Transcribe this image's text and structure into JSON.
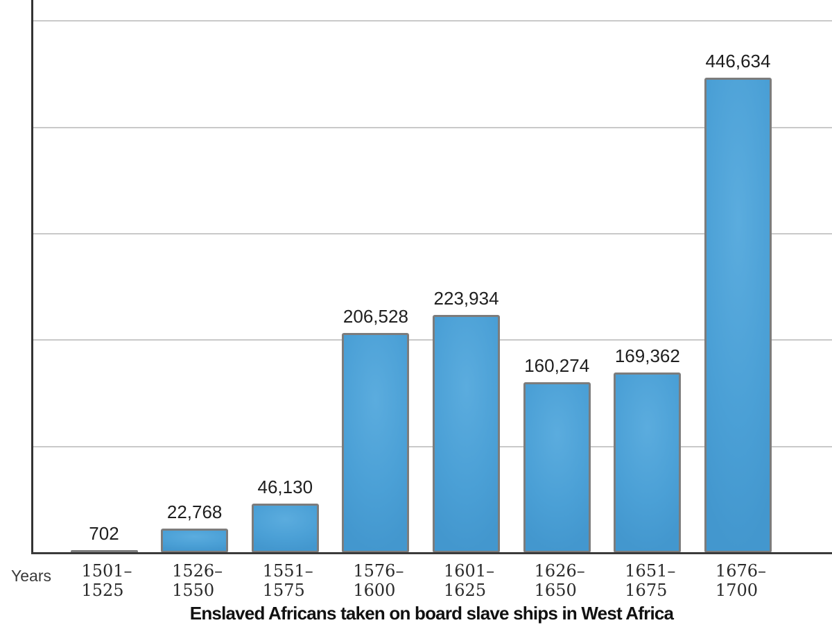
{
  "chart_data": {
    "type": "bar",
    "title": "Enslaved Africans taken on board slave ships in West Africa",
    "xlabel": "Years",
    "categories": [
      "1501–\n1525",
      "1526–\n1550",
      "1551–\n1575",
      "1576–\n1600",
      "1601–\n1625",
      "1626–\n1650",
      "1651–\n1675",
      "1676–\n1700"
    ],
    "values": [
      702,
      22768,
      46130,
      206528,
      223934,
      160274,
      169362,
      446634
    ],
    "value_labels": [
      "702",
      "22,768",
      "46,130",
      "206,528",
      "223,934",
      "160,274",
      "169,362",
      "446,634"
    ],
    "ylim": [
      0,
      500000
    ],
    "gridline_step": 100000,
    "grid": "horizontal-only",
    "y_tick_labels_shown": false,
    "legend": "none",
    "colors": {
      "bar_fill": "#4BA0D6",
      "bar_border": "#7C7C7C",
      "axis": "#3A3A3A",
      "gridline": "#C9C9C9",
      "value_label_text": "#1E1E1E",
      "tick_label_text": "#2B2B2B",
      "title_text": "#111111"
    }
  }
}
